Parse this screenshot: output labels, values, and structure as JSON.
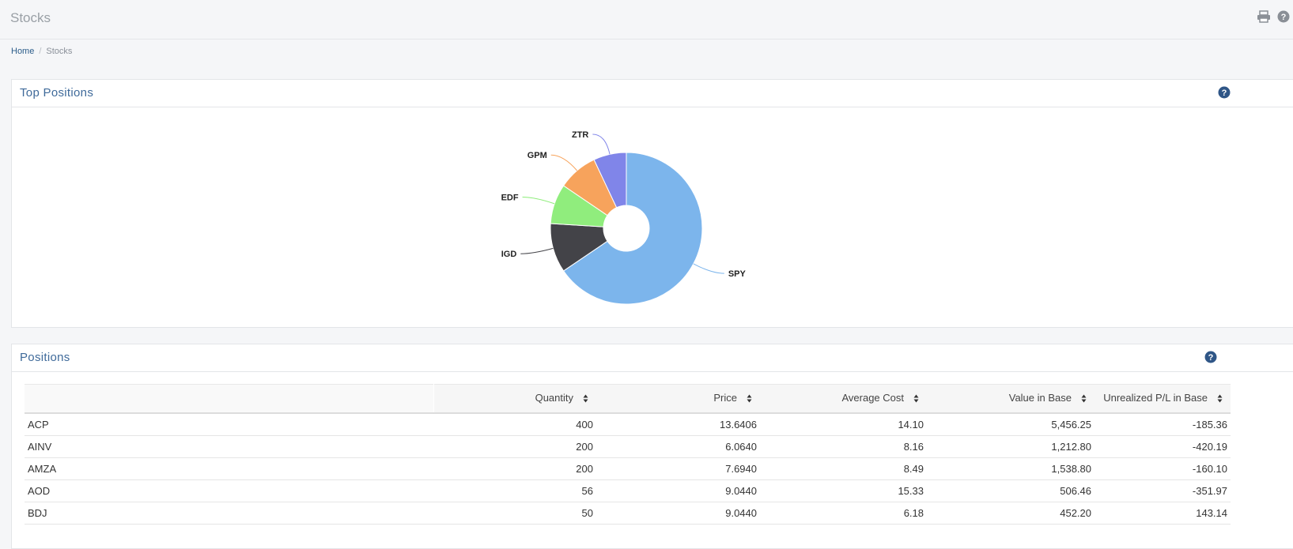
{
  "page": {
    "title": "Stocks"
  },
  "breadcrumb": {
    "home": "Home",
    "current": "Stocks"
  },
  "top_positions": {
    "title": "Top Positions"
  },
  "chart_data": {
    "type": "pie",
    "donut": true,
    "categories": [
      "SPY",
      "IGD",
      "EDF",
      "GPM",
      "ZTR"
    ],
    "values": [
      65.5,
      10.5,
      8.5,
      8.5,
      7.0
    ],
    "colors": [
      "#7cb5ec",
      "#434348",
      "#90ed7d",
      "#f7a35c",
      "#8085e9"
    ],
    "start_angle_deg": 0
  },
  "positions": {
    "title": "Positions",
    "columns": [
      "",
      "Quantity",
      "Price",
      "Average Cost",
      "Value in Base",
      "Unrealized P/L in Base"
    ],
    "rows": [
      {
        "symbol": "ACP",
        "quantity": "400",
        "price": "13.6406",
        "avg_cost": "14.10",
        "value": "5,456.25",
        "pl": "-185.36"
      },
      {
        "symbol": "AINV",
        "quantity": "200",
        "price": "6.0640",
        "avg_cost": "8.16",
        "value": "1,212.80",
        "pl": "-420.19"
      },
      {
        "symbol": "AMZA",
        "quantity": "200",
        "price": "7.6940",
        "avg_cost": "8.49",
        "value": "1,538.80",
        "pl": "-160.10"
      },
      {
        "symbol": "AOD",
        "quantity": "56",
        "price": "9.0440",
        "avg_cost": "15.33",
        "value": "506.46",
        "pl": "-351.97"
      },
      {
        "symbol": "BDJ",
        "quantity": "50",
        "price": "9.0440",
        "avg_cost": "6.18",
        "value": "452.20",
        "pl": "143.14"
      }
    ]
  },
  "icons": {
    "print": "print-icon",
    "help": "help-icon"
  }
}
